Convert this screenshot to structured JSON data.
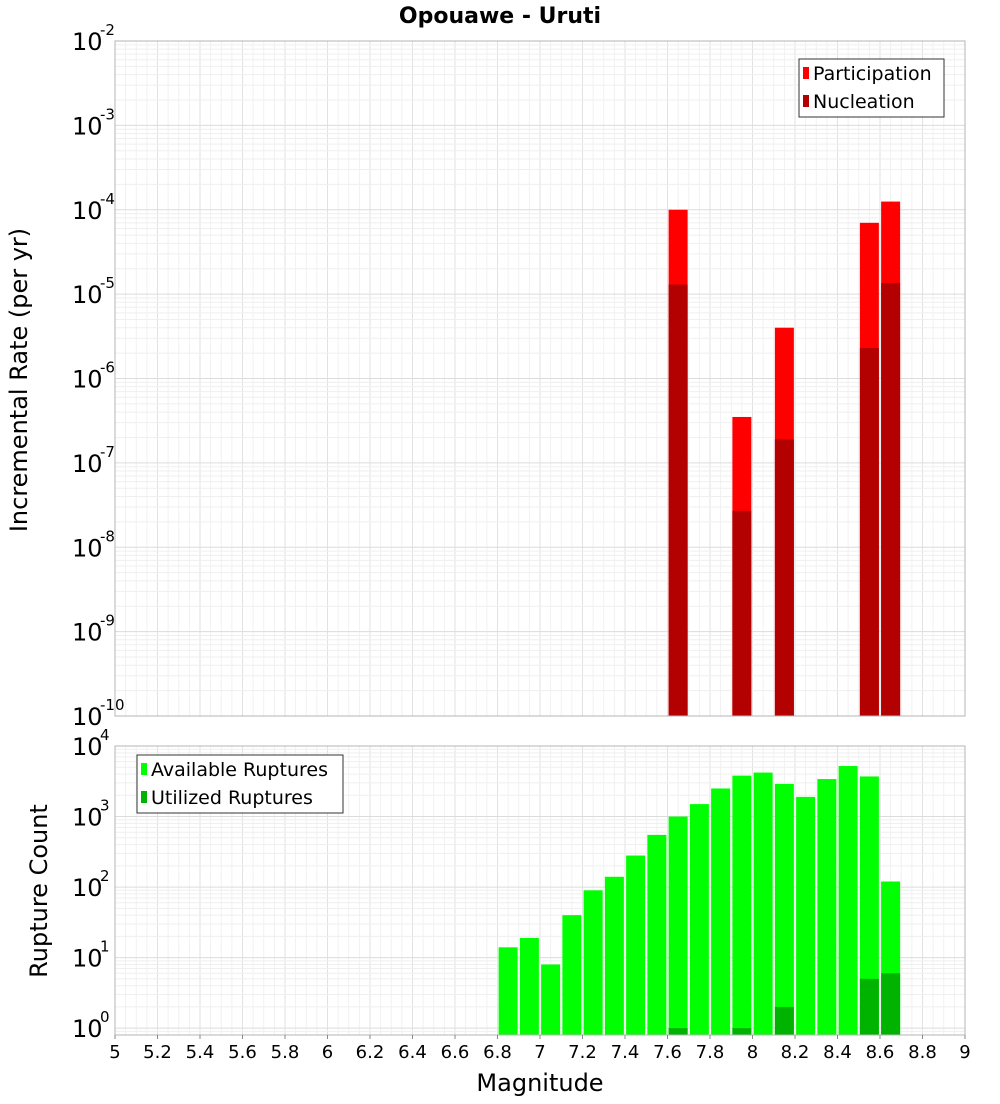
{
  "chart_data": [
    {
      "type": "bar",
      "title": "Opouawe - Uruti",
      "ylabel": "Incremental Rate (per yr)",
      "xlabel": "",
      "yscale": "log",
      "ylim": [
        1e-10,
        0.01
      ],
      "xlim": [
        5,
        9
      ],
      "legend_position": "top-right",
      "grid": true,
      "series": [
        {
          "name": "Participation",
          "color": "#ff0000",
          "x": [
            7.65,
            7.95,
            8.15,
            8.55,
            8.65
          ],
          "values": [
            0.0001,
            3.5e-07,
            4e-06,
            7e-05,
            0.000125
          ]
        },
        {
          "name": "Nucleation",
          "color": "#b30000",
          "x": [
            7.65,
            7.95,
            8.15,
            8.55,
            8.65
          ],
          "values": [
            1.3e-05,
            2.7e-08,
            1.9e-07,
            2.3e-06,
            1.35e-05
          ]
        }
      ]
    },
    {
      "type": "bar",
      "title": "",
      "ylabel": "Rupture Count",
      "xlabel": "Magnitude",
      "yscale": "log",
      "ylim": [
        0.8,
        10000
      ],
      "xlim": [
        5,
        9
      ],
      "legend_position": "top-left",
      "grid": true,
      "x_ticks": [
        "5",
        "5.2",
        "5.4",
        "5.6",
        "5.8",
        "6",
        "6.2",
        "6.4",
        "6.6",
        "6.8",
        "7",
        "7.2",
        "7.4",
        "7.6",
        "7.8",
        "8",
        "8.2",
        "8.4",
        "8.6",
        "8.8",
        "9"
      ],
      "series": [
        {
          "name": "Available Ruptures",
          "color": "#00ff00",
          "x": [
            6.85,
            6.95,
            7.05,
            7.15,
            7.25,
            7.35,
            7.45,
            7.55,
            7.65,
            7.75,
            7.85,
            7.95,
            8.05,
            8.15,
            8.25,
            8.35,
            8.45,
            8.55,
            8.65
          ],
          "values": [
            14,
            19,
            8,
            40,
            90,
            140,
            280,
            550,
            1000,
            1500,
            2500,
            3800,
            4200,
            2900,
            1900,
            3400,
            5200,
            3700,
            120
          ]
        },
        {
          "name": "Utilized Ruptures",
          "color": "#00b300",
          "x": [
            7.65,
            7.95,
            8.15,
            8.55,
            8.65
          ],
          "values": [
            1,
            1,
            2,
            5,
            6
          ]
        }
      ]
    }
  ]
}
